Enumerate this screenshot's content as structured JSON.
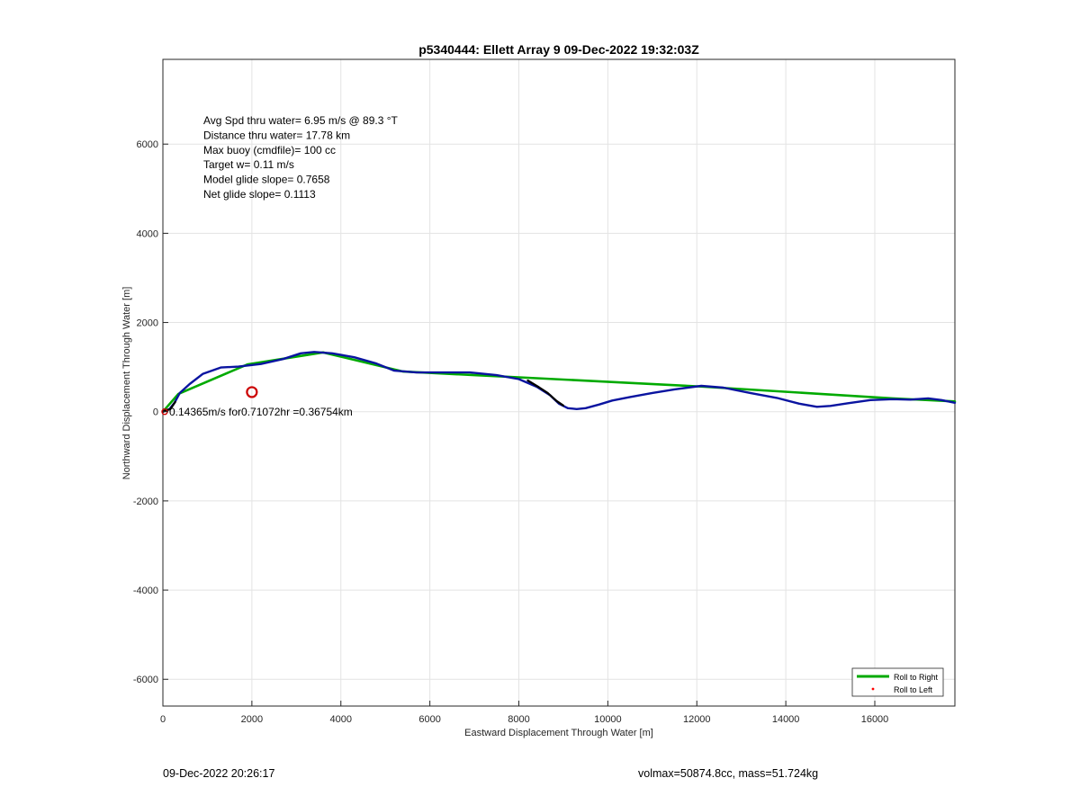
{
  "chart_data": {
    "type": "line",
    "title": "p5340444: Ellett Array 9 09-Dec-2022 19:32:03Z",
    "xlabel": "Eastward Displacement Through Water [m]",
    "ylabel": "Northward Displacement Through Water [m]",
    "xlim": [
      0,
      17800
    ],
    "ylim": [
      -6600,
      7900
    ],
    "xticks": [
      0,
      2000,
      4000,
      6000,
      8000,
      10000,
      12000,
      14000,
      16000
    ],
    "yticks": [
      -6000,
      -4000,
      -2000,
      0,
      2000,
      4000,
      6000
    ],
    "grid": true,
    "legend": {
      "placement": "bottom-right",
      "entries": [
        "Roll to Right",
        "Roll to Left"
      ]
    },
    "annotations": [
      "Avg Spd thru water=  6.95 m/s @  89.3 °T",
      "Distance thru water= 17.78 km",
      "Max buoy (cmdfile)= 100 cc",
      "Target w= 0.11 m/s",
      "Model glide slope= 0.7658",
      "Net glide slope= 0.1113"
    ],
    "current_label": "0.14365m/s for0.71072hr =0.36754km",
    "series": [
      {
        "name": "Roll to Right",
        "color": "#00aa00",
        "x": [
          0,
          350,
          1900,
          3600,
          5400,
          7000,
          8200,
          12000,
          16400,
          17800
        ],
        "y": [
          0,
          400,
          1060,
          1330,
          900,
          820,
          760,
          570,
          300,
          230
        ]
      },
      {
        "name": "Roll to Left",
        "color": "#ff0000",
        "x": [],
        "y": []
      },
      {
        "color": "#0a14a0",
        "x": [
          0,
          150,
          260,
          380,
          600,
          900,
          1300,
          1700,
          2200,
          2700,
          3100,
          3400,
          3800,
          4300,
          4800,
          5200,
          5700,
          6300,
          6900,
          7500,
          8000,
          8400,
          8700,
          8900,
          9100,
          9300,
          9500,
          9800,
          10100,
          10500,
          11000,
          11500,
          12100,
          12600,
          13200,
          13800,
          14300,
          14700,
          15000,
          15400,
          15900,
          16400,
          16800,
          17200,
          17500,
          17800
        ],
        "y": [
          0,
          60,
          200,
          420,
          620,
          850,
          990,
          1010,
          1070,
          1180,
          1310,
          1340,
          1310,
          1220,
          1080,
          920,
          880,
          880,
          880,
          820,
          730,
          560,
          370,
          180,
          80,
          60,
          80,
          160,
          250,
          330,
          420,
          500,
          580,
          540,
          420,
          310,
          180,
          110,
          130,
          190,
          260,
          280,
          270,
          300,
          260,
          200
        ]
      }
    ],
    "black_segments": [
      {
        "x": [
          0,
          170,
          280
        ],
        "y": [
          0,
          60,
          220
        ]
      },
      {
        "x": [
          8200,
          8450,
          8650,
          8850,
          9000
        ],
        "y": [
          700,
          550,
          420,
          240,
          140
        ]
      }
    ],
    "circle_marker": {
      "x": 2000,
      "y": 440,
      "color": "#cc0000"
    },
    "origin_marker": {
      "x": 0,
      "y": 0
    }
  },
  "footer": {
    "left": "09-Dec-2022 20:26:17",
    "right": "volmax=50874.8cc, mass=51.724kg"
  }
}
